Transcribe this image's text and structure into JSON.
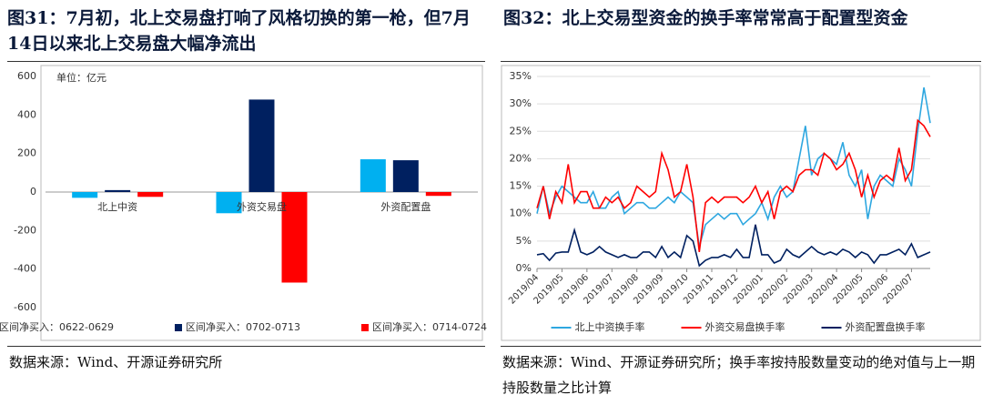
{
  "chart_data": [
    {
      "type": "bar",
      "title": "图31：7月初，北上交易盘打响了风格切换的第一枪，但7月14日以来北上交易盘大幅净流出",
      "unit": "单位：亿元",
      "categories": [
        "北上中资",
        "外资交易盘",
        "外资配置盘"
      ],
      "series": [
        {
          "name": "区间净买入：0622-0629",
          "color": "#00b0f0",
          "values": [
            -30,
            -110,
            170
          ]
        },
        {
          "name": "区间净买入：0702-0713",
          "color": "#002060",
          "values": [
            10,
            480,
            165
          ]
        },
        {
          "name": "区间净买入：0714-0724",
          "color": "#ff0000",
          "values": [
            -25,
            -470,
            -20
          ]
        }
      ],
      "ylim": [
        -600,
        600
      ],
      "yticks": [
        -600,
        -400,
        -200,
        0,
        200,
        400,
        600
      ],
      "legend": "bottom",
      "source": "数据来源：Wind、开源证券研究所"
    },
    {
      "type": "line",
      "title": "图32：北上交易型资金的换手率常常高于配置型资金",
      "categories": [
        "2019/04",
        null,
        null,
        null,
        "2019/05",
        null,
        null,
        null,
        "2019/06",
        null,
        null,
        null,
        "2019/07",
        null,
        null,
        null,
        "2019/08",
        null,
        null,
        null,
        "2019/09",
        null,
        null,
        null,
        "2019/10",
        null,
        null,
        null,
        "2019/11",
        null,
        null,
        null,
        "2019/12",
        null,
        null,
        null,
        "2020/01",
        null,
        null,
        null,
        "2020/02",
        null,
        null,
        null,
        "2020/03",
        null,
        null,
        null,
        "2020/04",
        null,
        null,
        null,
        "2020/05",
        null,
        null,
        null,
        "2020/06",
        null,
        null,
        null,
        "2020/07",
        null,
        null,
        null
      ],
      "series": [
        {
          "name": "北上中资换手率",
          "color": "#2ea7e0",
          "values": [
            10,
            15,
            10,
            13,
            15,
            14,
            13,
            12,
            12,
            14,
            11,
            11,
            13,
            14,
            10,
            11,
            12,
            12,
            11,
            11,
            12,
            13,
            12,
            14,
            13,
            12,
            4,
            8,
            9,
            10,
            9,
            10,
            10,
            8,
            9,
            10,
            12,
            9,
            13,
            15,
            13,
            14,
            20,
            26,
            17,
            20,
            21,
            20,
            19,
            23,
            17,
            15,
            18,
            9,
            15,
            17,
            16,
            15,
            20,
            18,
            15,
            25,
            33,
            26.5
          ]
        },
        {
          "name": "外资交易盘换手率",
          "color": "#ff0000",
          "values": [
            11,
            15,
            9,
            14,
            12,
            19,
            12,
            14,
            14,
            11,
            11,
            13,
            12,
            13,
            11,
            12,
            15,
            14,
            13,
            14,
            21,
            18,
            13,
            14,
            19,
            13,
            3,
            12,
            13,
            12,
            13,
            13,
            13,
            12,
            13,
            15,
            12,
            14,
            9,
            14,
            15,
            14,
            17,
            18,
            18,
            17,
            21,
            20,
            18,
            19,
            21,
            18,
            13,
            17,
            13,
            16,
            17,
            16,
            22,
            16,
            18,
            27,
            26,
            24
          ]
        },
        {
          "name": "外资配置盘换手率",
          "color": "#002060",
          "values": [
            2.5,
            2.7,
            1.5,
            2.8,
            3,
            3,
            7,
            3,
            2.5,
            3,
            4,
            3,
            2.5,
            2,
            2.5,
            2,
            2,
            3,
            3,
            2,
            4,
            2,
            3,
            2,
            6,
            5,
            0.5,
            1.5,
            2,
            2,
            2.5,
            2,
            3.5,
            2,
            2,
            8,
            2.5,
            2.5,
            1,
            1.5,
            3.5,
            2.5,
            2,
            3,
            4,
            3,
            2.5,
            3,
            2.5,
            3.5,
            3,
            2,
            3,
            2.5,
            1,
            2.5,
            2.5,
            3,
            3.5,
            2.5,
            4.5,
            2,
            2.5,
            3
          ]
        }
      ],
      "ylim": [
        0,
        35
      ],
      "yticks": [
        {
          "value": 0,
          "label": "0%"
        },
        {
          "value": 5,
          "label": "5%"
        },
        {
          "value": 10,
          "label": "10%"
        },
        {
          "value": 15,
          "label": "15%"
        },
        {
          "value": 20,
          "label": "20%"
        },
        {
          "value": 25,
          "label": "25%"
        },
        {
          "value": 30,
          "label": "30%"
        },
        {
          "value": 35,
          "label": "35%"
        }
      ],
      "grid": true,
      "legend": "bottom",
      "source": "数据来源：Wind、开源证券研究所；换手率按持股数量变动的绝对值与上一期持股数量之比计算"
    }
  ]
}
